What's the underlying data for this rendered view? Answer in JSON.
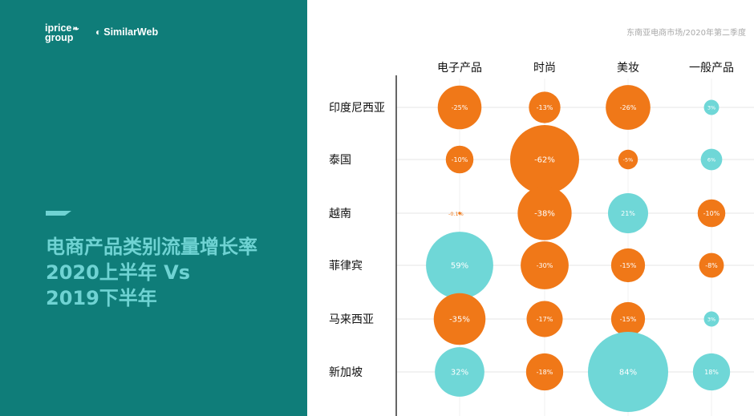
{
  "header": {
    "subtitle": "东南亚电商市场/2020年第二季度"
  },
  "logos": {
    "iprice_line1": "iprice",
    "iprice_line2": "group",
    "similarweb": "SimilarWeb"
  },
  "title": {
    "line1": "电商产品类别流量增长率",
    "line2": "2020上半年 Vs",
    "line3": "2019下半年"
  },
  "colors": {
    "panel": "#0f7d79",
    "accent": "#6fd3d3",
    "negative": "#f07818",
    "positive": "#6fd7d7"
  },
  "chart_data": {
    "type": "bubble",
    "columns": [
      "电子产品",
      "时尚",
      "美妆",
      "一般产品"
    ],
    "rows": [
      "印度尼西亚",
      "泰国",
      "越南",
      "菲律宾",
      "马来西亚",
      "新加坡"
    ],
    "values": [
      [
        -25,
        -13,
        -26,
        3
      ],
      [
        -10,
        -62,
        -5,
        6
      ],
      [
        -0.1,
        -38,
        21,
        -10
      ],
      [
        59,
        -30,
        -15,
        -8
      ],
      [
        -35,
        -17,
        -15,
        3
      ],
      [
        32,
        -18,
        84,
        18
      ]
    ],
    "labels": [
      [
        "-25%",
        "-13%",
        "-26%",
        "3%"
      ],
      [
        "-10%",
        "-62%",
        "-5%",
        "6%"
      ],
      [
        "-0.1%",
        "-38%",
        "21%",
        "-10%"
      ],
      [
        "59%",
        "-30%",
        "-15%",
        "-8%"
      ],
      [
        "-35%",
        "-17%",
        "-15%",
        "3%"
      ],
      [
        "32%",
        "-18%",
        "84%",
        "18%"
      ]
    ]
  }
}
